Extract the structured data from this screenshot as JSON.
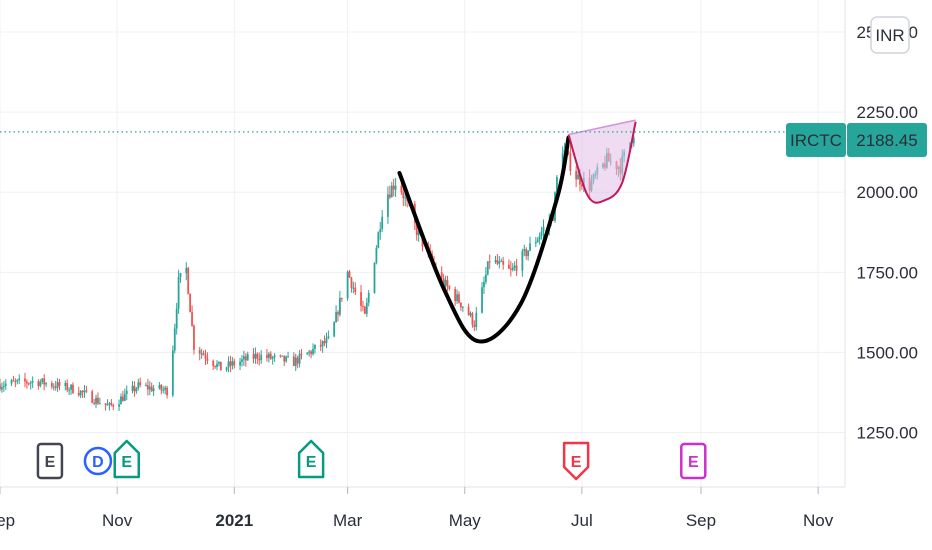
{
  "currency_badge": "INR",
  "price_label": {
    "symbol": "IRCTC",
    "value": "2188.45",
    "color": "#26a69a"
  },
  "colors": {
    "up": "#26a69a",
    "down": "#ef5350",
    "cup": "#000000",
    "handle_fill": "#e1bee7",
    "handle_stroke": "#c2185b"
  },
  "events": [
    {
      "label": "E",
      "date": "2020-09-27",
      "shape": "square",
      "color": "#434651"
    },
    {
      "label": "D",
      "date": "2020-10-22",
      "shape": "circle",
      "color": "#2962ff"
    },
    {
      "label": "E",
      "date": "2020-11-06",
      "shape": "house-up",
      "color": "#089981"
    },
    {
      "label": "E",
      "date": "2021-02-10",
      "shape": "house-up",
      "color": "#089981"
    },
    {
      "label": "E",
      "date": "2021-06-28",
      "shape": "house-down",
      "color": "#f23645"
    },
    {
      "label": "E",
      "date": "2021-08-28",
      "shape": "square",
      "color": "#cc2fcc"
    }
  ],
  "chart_data": {
    "type": "candlestick",
    "symbol": "IRCTC",
    "currency": "INR",
    "last_price": 2188.45,
    "y_ticks": [
      "2500.00",
      "2250.00",
      "2000.00",
      "1750.00",
      "1500.00",
      "1250.00"
    ],
    "ylim": [
      1080,
      2600
    ],
    "x_ticks": [
      "Sep",
      "Nov",
      "2021",
      "Mar",
      "May",
      "Jul",
      "Sep",
      "Nov"
    ],
    "xlim": [
      "2020-09-01",
      "2021-11-15"
    ],
    "grid": true,
    "price_series": [
      {
        "date": "2020-09-01",
        "close": 1400
      },
      {
        "date": "2020-09-20",
        "close": 1410
      },
      {
        "date": "2020-10-10",
        "close": 1385
      },
      {
        "date": "2020-10-28",
        "close": 1330
      },
      {
        "date": "2020-11-12",
        "close": 1395
      },
      {
        "date": "2020-11-28",
        "close": 1380
      },
      {
        "date": "2020-12-03",
        "close": 1720
      },
      {
        "date": "2020-12-07",
        "close": 1760
      },
      {
        "date": "2020-12-11",
        "close": 1520
      },
      {
        "date": "2020-12-25",
        "close": 1450
      },
      {
        "date": "2021-01-13",
        "close": 1490
      },
      {
        "date": "2021-02-01",
        "close": 1470
      },
      {
        "date": "2021-02-20",
        "close": 1540
      },
      {
        "date": "2021-03-01",
        "close": 1750
      },
      {
        "date": "2021-03-10",
        "close": 1610
      },
      {
        "date": "2021-03-20",
        "close": 1980
      },
      {
        "date": "2021-03-27",
        "close": 2040
      },
      {
        "date": "2021-04-06",
        "close": 1880
      },
      {
        "date": "2021-04-18",
        "close": 1730
      },
      {
        "date": "2021-05-01",
        "close": 1640
      },
      {
        "date": "2021-05-06",
        "close": 1590
      },
      {
        "date": "2021-05-14",
        "close": 1790
      },
      {
        "date": "2021-05-25",
        "close": 1750
      },
      {
        "date": "2021-06-08",
        "close": 1860
      },
      {
        "date": "2021-06-16",
        "close": 1930
      },
      {
        "date": "2021-06-20",
        "close": 2150
      },
      {
        "date": "2021-06-28",
        "close": 2050
      },
      {
        "date": "2021-07-05",
        "close": 2020
      },
      {
        "date": "2021-07-14",
        "close": 2100
      },
      {
        "date": "2021-07-21",
        "close": 2080
      },
      {
        "date": "2021-07-28",
        "close": 2188.45
      }
    ],
    "annotations": [
      {
        "type": "cup",
        "points": [
          [
            "2021-03-28",
            2060
          ],
          [
            "2021-04-20",
            1700
          ],
          [
            "2021-05-08",
            1535
          ],
          [
            "2021-05-30",
            1650
          ],
          [
            "2021-06-18",
            1980
          ],
          [
            "2021-06-24",
            2170
          ]
        ]
      },
      {
        "type": "handle",
        "points": [
          [
            "2021-06-24",
            2180
          ],
          [
            "2021-07-04",
            1990
          ],
          [
            "2021-07-13",
            1975
          ],
          [
            "2021-07-22",
            2030
          ],
          [
            "2021-07-29",
            2220
          ]
        ],
        "top": [
          [
            "2021-06-24",
            2180
          ],
          [
            "2021-07-29",
            2225
          ]
        ]
      }
    ]
  }
}
